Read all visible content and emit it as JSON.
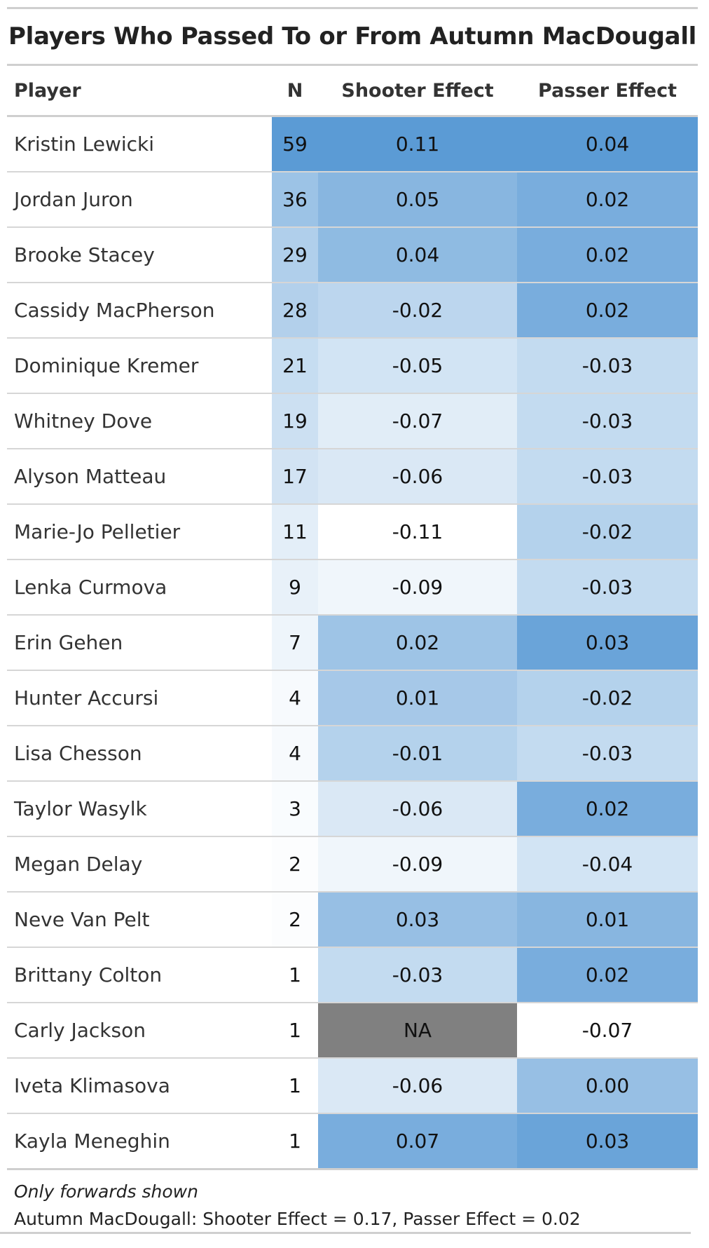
{
  "title": "Players Who Passed To or From Autumn MacDougall",
  "columns": {
    "player": "Player",
    "n": "N",
    "shooter": "Shooter Effect",
    "passer": "Passer Effect"
  },
  "colors": {
    "high": "#5b9bd5",
    "low": "#ffffff",
    "na": "#808080"
  },
  "chart_data": {
    "type": "table",
    "title": "Players Who Passed To or From Autumn MacDougall",
    "columns": [
      "Player",
      "N",
      "Shooter Effect",
      "Passer Effect"
    ],
    "rows": [
      {
        "player": "Kristin Lewicki",
        "n": "59",
        "shooter": "0.11",
        "passer": "0.04"
      },
      {
        "player": "Jordan Juron",
        "n": "36",
        "shooter": "0.05",
        "passer": "0.02"
      },
      {
        "player": "Brooke Stacey",
        "n": "29",
        "shooter": "0.04",
        "passer": "0.02"
      },
      {
        "player": "Cassidy MacPherson",
        "n": "28",
        "shooter": "-0.02",
        "passer": "0.02"
      },
      {
        "player": "Dominique Kremer",
        "n": "21",
        "shooter": "-0.05",
        "passer": "-0.03"
      },
      {
        "player": "Whitney Dove",
        "n": "19",
        "shooter": "-0.07",
        "passer": "-0.03"
      },
      {
        "player": "Alyson Matteau",
        "n": "17",
        "shooter": "-0.06",
        "passer": "-0.03"
      },
      {
        "player": "Marie-Jo Pelletier",
        "n": "11",
        "shooter": "-0.11",
        "passer": "-0.02"
      },
      {
        "player": "Lenka Curmova",
        "n": "9",
        "shooter": "-0.09",
        "passer": "-0.03"
      },
      {
        "player": "Erin Gehen",
        "n": "7",
        "shooter": "0.02",
        "passer": "0.03"
      },
      {
        "player": "Hunter Accursi",
        "n": "4",
        "shooter": "0.01",
        "passer": "-0.02"
      },
      {
        "player": "Lisa Chesson",
        "n": "4",
        "shooter": "-0.01",
        "passer": "-0.03"
      },
      {
        "player": "Taylor Wasylk",
        "n": "3",
        "shooter": "-0.06",
        "passer": "0.02"
      },
      {
        "player": "Megan Delay",
        "n": "2",
        "shooter": "-0.09",
        "passer": "-0.04"
      },
      {
        "player": "Neve Van Pelt",
        "n": "2",
        "shooter": "0.03",
        "passer": "0.01"
      },
      {
        "player": "Brittany Colton",
        "n": "1",
        "shooter": "-0.03",
        "passer": "0.02"
      },
      {
        "player": "Carly Jackson",
        "n": "1",
        "shooter": "NA",
        "passer": "-0.07"
      },
      {
        "player": "Iveta Klimasova",
        "n": "1",
        "shooter": "-0.06",
        "passer": "0.00"
      },
      {
        "player": "Kayla Meneghin",
        "n": "1",
        "shooter": "0.07",
        "passer": "0.03"
      }
    ]
  },
  "footer": {
    "note": "Only forwards shown",
    "summary": "Autumn MacDougall: Shooter Effect = 0.17, Passer Effect = 0.02"
  }
}
